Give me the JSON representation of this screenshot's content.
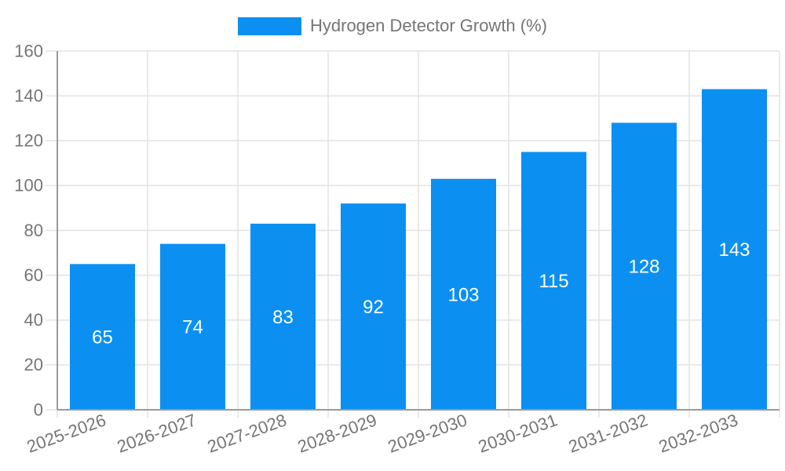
{
  "legend": {
    "label": "Hydrogen Detector Growth (%)"
  },
  "chart_data": {
    "type": "bar",
    "title": "",
    "xlabel": "",
    "ylabel": "",
    "categories": [
      "2025-2026",
      "2026-2027",
      "2027-2028",
      "2028-2029",
      "2029-2030",
      "2030-2031",
      "2031-2032",
      "2032-2033"
    ],
    "series": [
      {
        "name": "Hydrogen Detector Growth (%)",
        "values": [
          65,
          74,
          83,
          92,
          103,
          115,
          128,
          143
        ]
      }
    ],
    "bar_value_labels": [
      65,
      74,
      83,
      92,
      103,
      115,
      128,
      143
    ],
    "ylim": [
      0,
      160
    ],
    "ytick_step": 20,
    "ytick_labels": [
      "0",
      "20",
      "40",
      "60",
      "80",
      "100",
      "120",
      "140",
      "160"
    ],
    "grid": true,
    "legend_position": "top-center",
    "xlabel_rotation_deg": -20,
    "colors": {
      "bar": "#0b90f2",
      "axis_line": "#9a9a9a",
      "grid_line": "#e3e3e3",
      "tick_text": "#757575",
      "bar_label_text": "#ffffff",
      "background": "#ffffff"
    }
  }
}
